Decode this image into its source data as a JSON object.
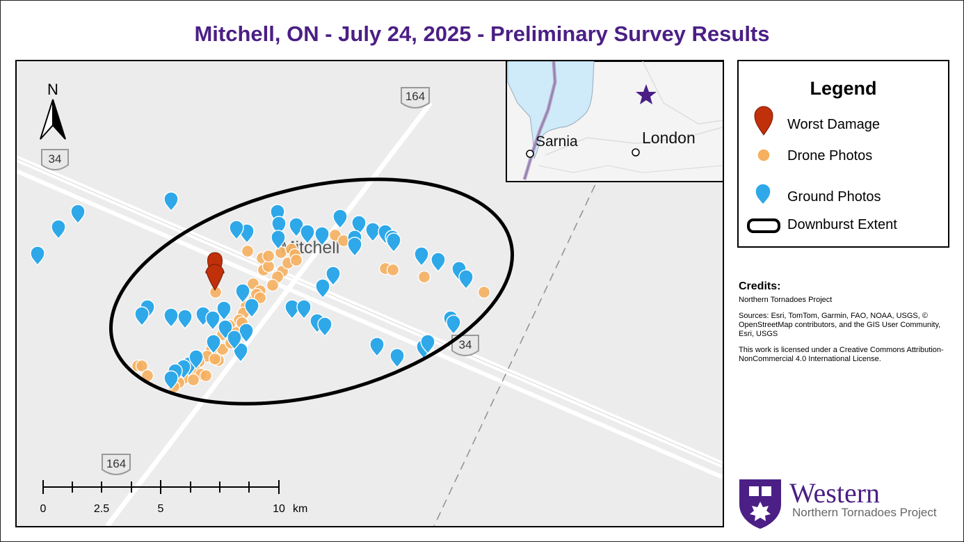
{
  "title": "Mitchell, ON - July 24, 2025 - Preliminary Survey Results",
  "map": {
    "town_label": "Mitchell",
    "north_label": "N",
    "road_shields": [
      "164",
      "34",
      "164",
      "34"
    ],
    "scale_bar": {
      "tick_labels": [
        "0",
        "2.5",
        "5",
        "10"
      ],
      "unit": "km"
    },
    "inset": {
      "city_labels": [
        "Sarnia",
        "London"
      ],
      "star_color": "#4b1f85"
    },
    "colors": {
      "worst_damage": "#c0300a",
      "drone": "#f5b060",
      "ground": "#2ea8e8",
      "extent": "#000000"
    }
  },
  "legend": {
    "title": "Legend",
    "items": [
      {
        "label": "Worst Damage",
        "icon": "red-pin-icon"
      },
      {
        "label": "Drone Photos",
        "icon": "orange-dot-icon"
      },
      {
        "label": "Ground Photos",
        "icon": "blue-pin-icon"
      },
      {
        "label": "Downburst Extent",
        "icon": "black-ellipse-icon"
      }
    ]
  },
  "credits": {
    "heading": "Credits:",
    "org": "Northern Tornadoes Project",
    "sources": "Sources: Esri, TomTom, Garmin, FAO, NOAA, USGS, © OpenStreetMap contributors, and the GIS User Community, Esri, USGS",
    "license": "This work is licensed under a Creative Commons Attribution-NonCommercial 4.0 International License."
  },
  "logo": {
    "wordmark": "Western",
    "subtitle": "Northern Tornadoes Project"
  }
}
